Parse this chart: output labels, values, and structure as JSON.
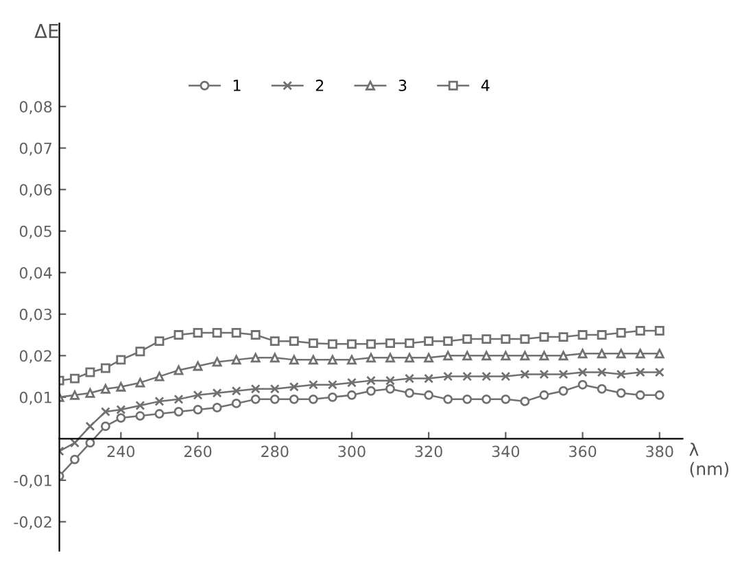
{
  "chart_data": {
    "type": "line",
    "ylabel": "ΔE",
    "xlabel": "λ\n(nm)",
    "x": [
      224,
      228,
      232,
      236,
      240,
      245,
      250,
      255,
      260,
      265,
      270,
      275,
      280,
      285,
      290,
      295,
      300,
      305,
      310,
      315,
      320,
      325,
      330,
      335,
      340,
      345,
      350,
      355,
      360,
      365,
      370,
      375,
      380
    ],
    "series": [
      {
        "name": "1",
        "color": "#707070",
        "marker": "circle",
        "values": [
          -0.009,
          -0.005,
          -0.001,
          0.003,
          0.005,
          0.0055,
          0.006,
          0.0065,
          0.007,
          0.0075,
          0.0085,
          0.0095,
          0.0095,
          0.0095,
          0.0095,
          0.01,
          0.0105,
          0.0115,
          0.012,
          0.011,
          0.0105,
          0.0095,
          0.0095,
          0.0095,
          0.0095,
          0.009,
          0.0105,
          0.0115,
          0.013,
          0.012,
          0.011,
          0.0105,
          0.0105
        ]
      },
      {
        "name": "2",
        "color": "#707070",
        "marker": "cross",
        "values": [
          -0.003,
          -0.001,
          0.003,
          0.0065,
          0.007,
          0.008,
          0.009,
          0.0095,
          0.0105,
          0.011,
          0.0115,
          0.012,
          0.012,
          0.0125,
          0.013,
          0.013,
          0.0135,
          0.014,
          0.014,
          0.0145,
          0.0145,
          0.015,
          0.015,
          0.015,
          0.015,
          0.0155,
          0.0155,
          0.0155,
          0.016,
          0.016,
          0.0155,
          0.016,
          0.016
        ]
      },
      {
        "name": "3",
        "color": "#707070",
        "marker": "triangle",
        "values": [
          0.01,
          0.0105,
          0.011,
          0.012,
          0.0125,
          0.0135,
          0.015,
          0.0165,
          0.0175,
          0.0185,
          0.019,
          0.0195,
          0.0195,
          0.019,
          0.019,
          0.019,
          0.019,
          0.0195,
          0.0195,
          0.0195,
          0.0195,
          0.02,
          0.02,
          0.02,
          0.02,
          0.02,
          0.02,
          0.02,
          0.0205,
          0.0205,
          0.0205,
          0.0205,
          0.0205
        ]
      },
      {
        "name": "4",
        "color": "#707070",
        "marker": "square",
        "values": [
          0.014,
          0.0145,
          0.016,
          0.017,
          0.019,
          0.021,
          0.0235,
          0.025,
          0.0255,
          0.0255,
          0.0255,
          0.025,
          0.0235,
          0.0235,
          0.023,
          0.0228,
          0.0228,
          0.0228,
          0.023,
          0.023,
          0.0235,
          0.0235,
          0.024,
          0.024,
          0.024,
          0.024,
          0.0245,
          0.0245,
          0.025,
          0.025,
          0.0255,
          0.026,
          0.026
        ]
      }
    ],
    "xlim": [
      224,
      386
    ],
    "ylim": [
      -0.027,
      0.1
    ],
    "xticks": [
      240,
      260,
      280,
      300,
      320,
      340,
      360,
      380
    ],
    "yticks": [
      {
        "value": -0.02,
        "label": "-0,02"
      },
      {
        "value": -0.01,
        "label": "-0,01"
      },
      {
        "value": 0.01,
        "label": "0,01"
      },
      {
        "value": 0.02,
        "label": "0,02"
      },
      {
        "value": 0.03,
        "label": "0,03"
      },
      {
        "value": 0.04,
        "label": "0,04"
      },
      {
        "value": 0.05,
        "label": "0,05"
      },
      {
        "value": 0.06,
        "label": "0,06"
      },
      {
        "value": 0.07,
        "label": "0,07"
      },
      {
        "value": 0.08,
        "label": "0,08"
      }
    ],
    "legend": "top",
    "line_style": "solid",
    "grid": false
  }
}
